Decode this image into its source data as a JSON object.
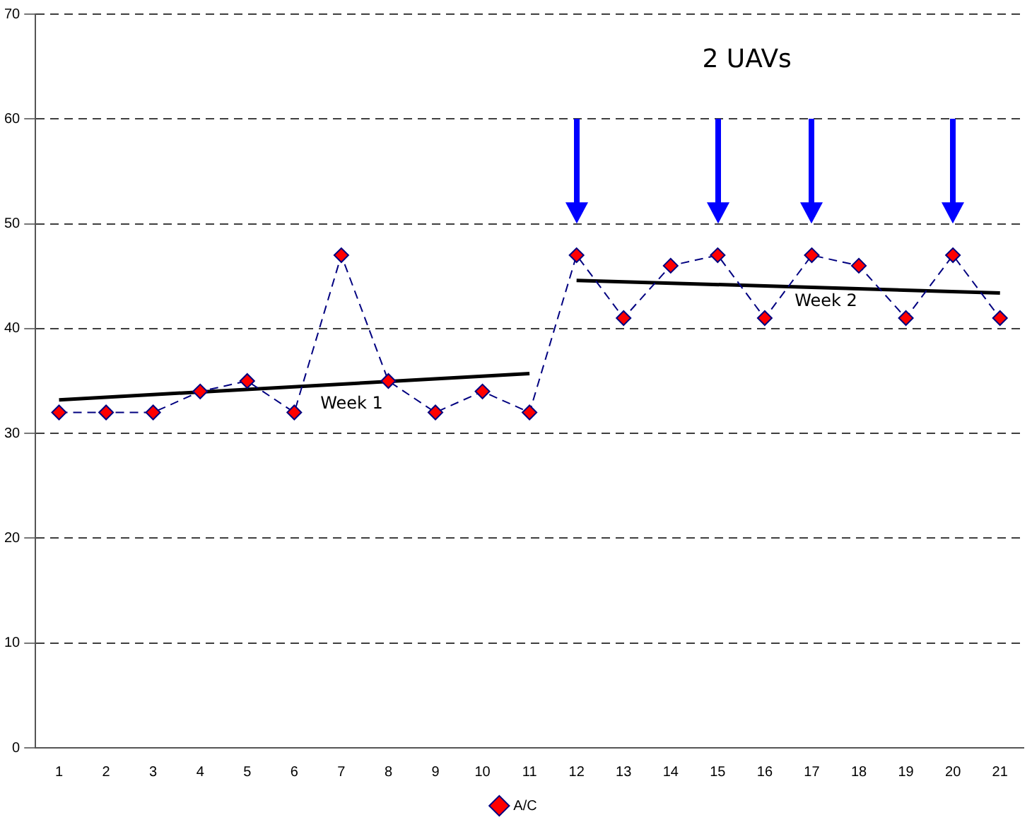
{
  "chart_data": {
    "type": "line",
    "x": [
      1,
      2,
      3,
      4,
      5,
      6,
      7,
      8,
      9,
      10,
      11,
      12,
      13,
      14,
      15,
      16,
      17,
      18,
      19,
      20,
      21
    ],
    "xlim": [
      0.5,
      21.5
    ],
    "xticks": [
      1,
      2,
      3,
      4,
      5,
      6,
      7,
      8,
      9,
      10,
      11,
      12,
      13,
      14,
      15,
      16,
      17,
      18,
      19,
      20,
      21
    ],
    "ylim": [
      0,
      70
    ],
    "yticks": [
      0,
      10,
      20,
      30,
      40,
      50,
      60,
      70
    ],
    "grid": "y",
    "legend": "bottom",
    "marker": "diamond",
    "line_style": "dashed",
    "series": [
      {
        "name": "A/C",
        "color": "#000080",
        "values": [
          32,
          32,
          32,
          34,
          35,
          32,
          47,
          35,
          32,
          34,
          32,
          47,
          41,
          46,
          47,
          41,
          47,
          46,
          41,
          47,
          41
        ]
      },
      {
        "type": "line",
        "color": "#000000",
        "x": [
          1,
          11
        ],
        "values": [
          33.2,
          35.7
        ],
        "marker": "none",
        "line_style": "solid"
      },
      {
        "type": "line",
        "color": "#000000",
        "x": [
          12,
          21
        ],
        "values": [
          44.6,
          43.4
        ],
        "marker": "none",
        "line_style": "solid"
      }
    ],
    "annotations": [
      "Week 1",
      "Week 2",
      "2 UAVs"
    ]
  }
}
